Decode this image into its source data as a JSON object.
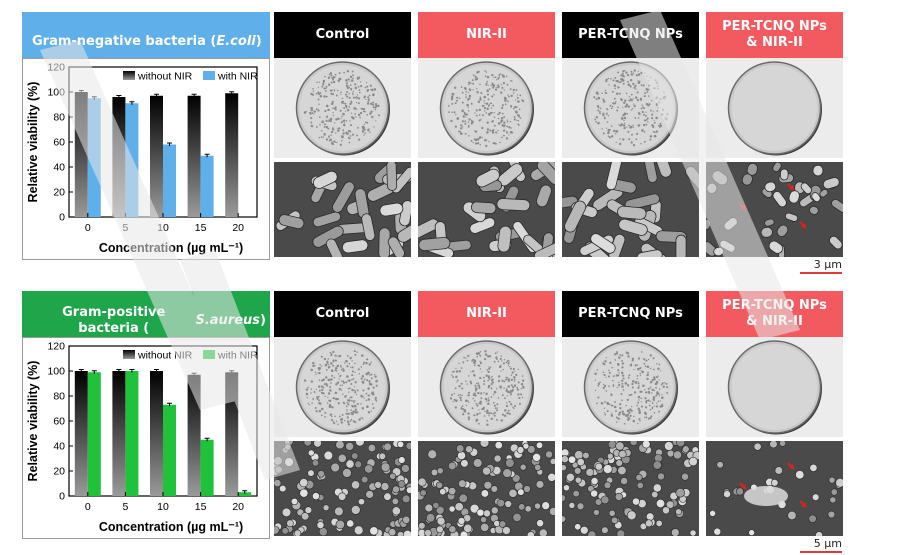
{
  "panels": [
    {
      "species_prefix": "Gram-negative bacteria (",
      "species_name": "E.coli",
      "species_suffix": " )",
      "header_color": "#5fb0ea",
      "column_headers": [
        "Control",
        "NIR-II",
        "PER-TCNQ NPs",
        "PER-TCNQ NPs & NIR-II"
      ],
      "scale_bar": "3 µm",
      "sem_type": "rods",
      "dish_density": [
        0.9,
        0.85,
        0.8,
        0.0
      ]
    },
    {
      "species_prefix": "Gram-positive bacteria (",
      "species_name": "S.aureus",
      "species_suffix": ")",
      "header_color": "#1fa64a",
      "column_headers": [
        "Control",
        "NIR-II",
        "PER-TCNQ NPs",
        "PER-TCNQ NPs & NIR-II"
      ],
      "scale_bar": "5 µm",
      "sem_type": "cocci",
      "dish_density": [
        0.9,
        0.85,
        0.8,
        0.0
      ]
    }
  ],
  "column_colors": [
    "#000000",
    "#f25a5f",
    "#000000",
    "#f25a5f"
  ],
  "chart_data": [
    {
      "type": "bar",
      "ylabel": "Relative viability (%)",
      "xlabel": "Concentration (µg mL⁻¹)",
      "categories": [
        "0",
        "5",
        "10",
        "15",
        "20"
      ],
      "ylim": [
        0,
        120
      ],
      "yticks": [
        0,
        20,
        40,
        60,
        80,
        100,
        120
      ],
      "legend_position": "top-right",
      "series": [
        {
          "name": "without NIR",
          "color": "#000000",
          "values": [
            100,
            96,
            97,
            97,
            99
          ]
        },
        {
          "name": "with NIR",
          "color": "#5fb0ea",
          "values": [
            95,
            91,
            58,
            49,
            0
          ]
        }
      ]
    },
    {
      "type": "bar",
      "ylabel": "Relative viability (%)",
      "xlabel": "Concentration (µg mL⁻¹)",
      "categories": [
        "0",
        "5",
        "10",
        "15",
        "20"
      ],
      "ylim": [
        0,
        120
      ],
      "yticks": [
        0,
        20,
        40,
        60,
        80,
        100,
        120
      ],
      "legend_position": "top-right",
      "series": [
        {
          "name": "without NIR",
          "color": "#000000",
          "values": [
            100,
            100,
            100,
            97,
            99
          ]
        },
        {
          "name": "with NIR",
          "color": "#1fc23a",
          "values": [
            99,
            100,
            73,
            45,
            3
          ]
        }
      ]
    }
  ]
}
